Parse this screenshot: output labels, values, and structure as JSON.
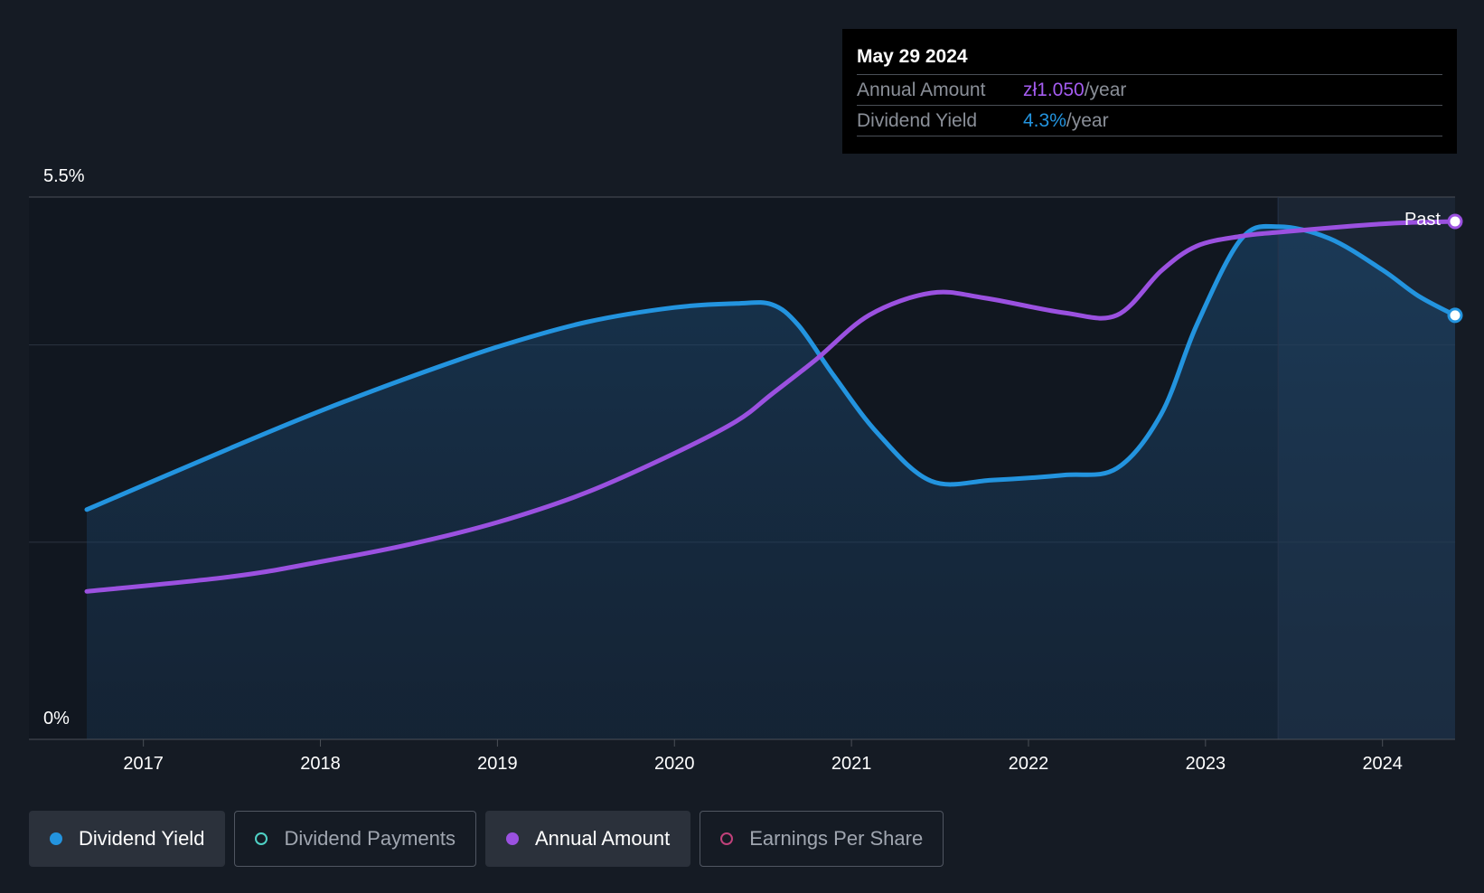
{
  "tooltip": {
    "date": "May 29 2024",
    "annual_amount_label": "Annual Amount",
    "annual_amount_value": "zł1.050",
    "annual_amount_unit": "/year",
    "dividend_yield_label": "Dividend Yield",
    "dividend_yield_value": "4.3%",
    "dividend_yield_unit": "/year"
  },
  "legend": [
    {
      "label": "Dividend Yield",
      "color": "#2394df",
      "filled": true,
      "active": true
    },
    {
      "label": "Dividend Payments",
      "color": "#4fd1c5",
      "filled": false,
      "active": false
    },
    {
      "label": "Annual Amount",
      "color": "#9b51e0",
      "filled": true,
      "active": true
    },
    {
      "label": "Earnings Per Share",
      "color": "#c0417a",
      "filled": false,
      "active": false
    }
  ],
  "colors": {
    "background": "#151b24",
    "yield_line": "#2394df",
    "annual_line": "#9b51e0",
    "past_region": "#1b2533"
  },
  "chart_data": {
    "type": "line",
    "y_axis_labels": [
      "5.5%",
      "0%"
    ],
    "ylim": [
      0,
      5.5
    ],
    "xlim": [
      2016.68,
      2024.41
    ],
    "x_ticks": [
      "2017",
      "2018",
      "2019",
      "2020",
      "2021",
      "2022",
      "2023",
      "2024"
    ],
    "x_tick_values": [
      2017,
      2018,
      2019,
      2020,
      2021,
      2022,
      2023,
      2024
    ],
    "gridlines_y": [
      2.0,
      4.0
    ],
    "past_label": "Past",
    "past_start": 2023.41,
    "series": [
      {
        "name": "Dividend Yield",
        "unit": "%",
        "x": [
          2016.68,
          2017.5,
          2018.0,
          2018.5,
          2019.0,
          2019.5,
          2020.0,
          2020.35,
          2020.55,
          2020.7,
          2020.9,
          2021.15,
          2021.45,
          2021.8,
          2022.2,
          2022.5,
          2022.75,
          2022.95,
          2023.2,
          2023.41,
          2023.7,
          2024.0,
          2024.2,
          2024.41
        ],
        "values": [
          2.33,
          2.96,
          3.33,
          3.67,
          3.98,
          4.23,
          4.38,
          4.42,
          4.41,
          4.2,
          3.69,
          3.1,
          2.62,
          2.63,
          2.68,
          2.75,
          3.3,
          4.2,
          5.07,
          5.2,
          5.08,
          4.76,
          4.5,
          4.3
        ]
      },
      {
        "name": "Annual Amount",
        "unit": "zł/year",
        "x": [
          2016.68,
          2017.5,
          2018.0,
          2018.5,
          2019.0,
          2019.5,
          2020.0,
          2020.35,
          2020.55,
          2020.8,
          2021.1,
          2021.45,
          2021.75,
          2022.2,
          2022.5,
          2022.75,
          2022.95,
          2023.2,
          2023.41,
          2023.8,
          2024.1,
          2024.41
        ]
      }
    ],
    "annual_amount_values": [
      0.3,
      0.33,
      0.36,
      0.395,
      0.44,
      0.5,
      0.58,
      0.645,
      0.7,
      0.77,
      0.86,
      0.905,
      0.895,
      0.865,
      0.86,
      0.95,
      1.0,
      1.02,
      1.028,
      1.04,
      1.047,
      1.05
    ],
    "annual_amount_axis_note": "",
    "ylabel": "",
    "xlabel": "",
    "title": "",
    "legend_position": "bottom-left"
  }
}
